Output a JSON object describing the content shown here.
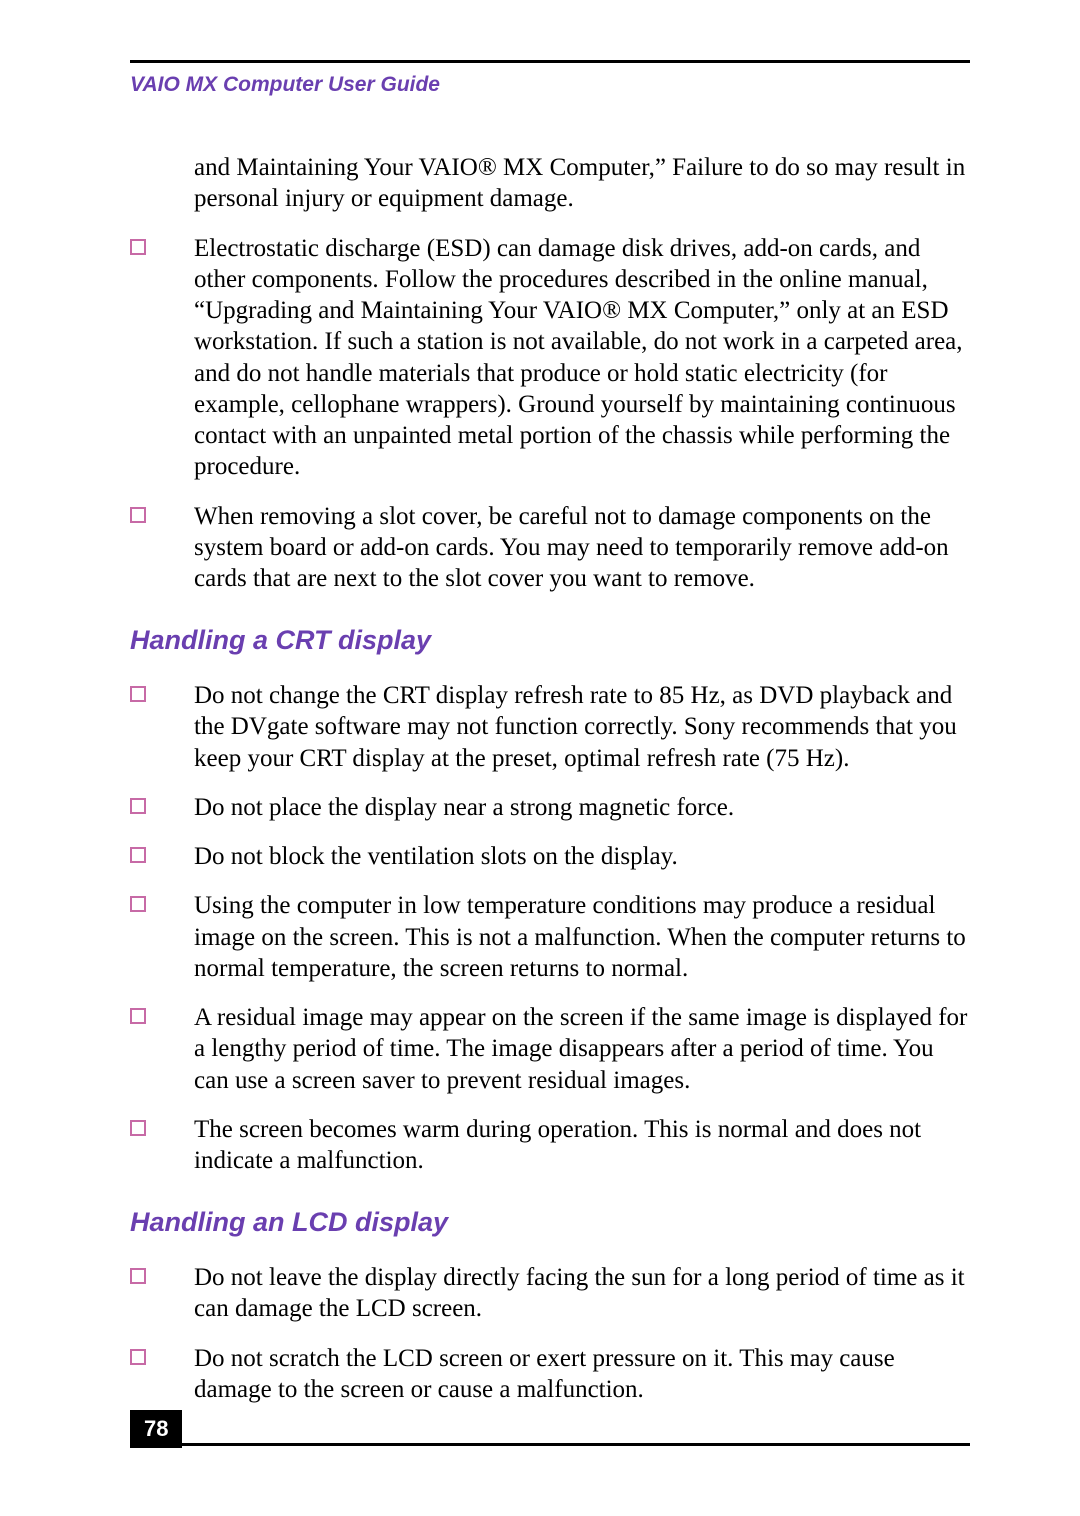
{
  "header": {
    "running_title": "VAIO MX Computer User Guide"
  },
  "continuation_text": "and Maintaining Your VAIO® MX Computer,”  Failure to do so may result in personal injury or equipment damage.",
  "intro_bullets": [
    "Electrostatic discharge (ESD) can damage disk drives, add-on cards, and other components. Follow the procedures described in the online manual, “Upgrading and Maintaining Your VAIO® MX Computer,” only at an ESD workstation. If such a station is not available, do not work in a carpeted area, and do not handle materials that produce or hold static electricity (for example, cellophane wrappers). Ground yourself by maintaining continuous contact with an unpainted metal portion of the chassis while performing the procedure.",
    "When removing a slot cover, be careful not to damage components on the system board or add-on cards. You may need to temporarily remove add-on cards that are next to the slot cover you want to remove."
  ],
  "sections": [
    {
      "heading": "Handling a CRT display",
      "bullets": [
        "Do not change the CRT display refresh rate to 85 Hz, as DVD playback and the DVgate software may not function correctly. Sony recommends that you keep your CRT display at the preset, optimal refresh rate (75 Hz).",
        "Do not place the display near a strong magnetic force.",
        "Do not block the ventilation slots on the display.",
        "Using the computer in low temperature conditions may produce a residual image on the screen. This is not a malfunction. When the computer returns to normal temperature, the screen returns to normal.",
        "A residual image may appear on the screen if the same image is displayed for a lengthy period of time. The image disappears after a period of time. You can use a screen saver to prevent residual images.",
        "The screen becomes warm during operation. This is normal and does not indicate a malfunction."
      ]
    },
    {
      "heading": "Handling an LCD display",
      "bullets": [
        "Do not leave the display directly facing the sun for a long period of time as it can damage the LCD screen.",
        "Do not scratch the LCD screen or exert pressure on it. This may cause damage to the screen or cause a malfunction."
      ]
    }
  ],
  "page_number": "78",
  "colors": {
    "heading_color": "#6a3fb0",
    "bullet_border": "#c76aa6",
    "text_color": "#000000",
    "background": "#ffffff"
  },
  "section_heading_fontsize_pt": 20,
  "body_fontsize_pt": 18
}
